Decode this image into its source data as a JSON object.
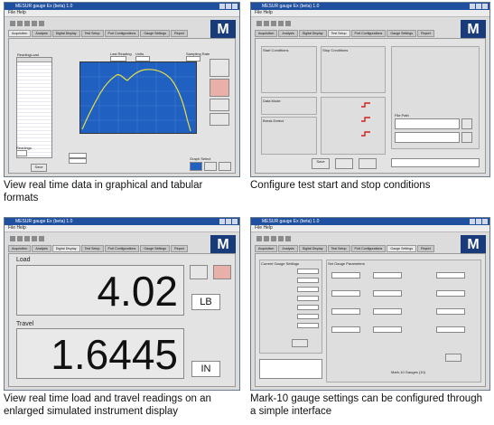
{
  "panel1": {
    "app_title": "MESUR gauge Ex (beta) 1.0",
    "menu": "File Help",
    "tabs": [
      "Acquisition",
      "Analysis",
      "Digital Display",
      "Test Setup",
      "Port Configurations",
      "Gauge Settings",
      "Report"
    ],
    "labels": {
      "reading": "Reading",
      "load": "Load",
      "travel": "Travel (in)",
      "last_reading": "Last Reading",
      "units": "Units",
      "sampling_rate": "Sampling Rate",
      "readings": "Readings",
      "save": "Save",
      "graph_select": "Graph Select"
    },
    "caption": "View real time data in graphical and tabular formats"
  },
  "panel2": {
    "app_title": "MESUR gauge Ex (beta) 1.0",
    "menu": "File Help",
    "tabs": [
      "Acquisition",
      "Analysis",
      "Digital Display",
      "Test Setup",
      "Port Configurations",
      "Gauge Settings",
      "Report"
    ],
    "labels": {
      "start_conditions": "Start Conditions",
      "stop_conditions": "Stop Conditions",
      "data_mode": "Data Mode",
      "break_detect": "Break Detect",
      "file_path": "File Path",
      "save": "Save",
      "caption_area": "Test Setup"
    },
    "caption": "Configure test start and stop conditions"
  },
  "panel3": {
    "app_title": "MESUR gauge Ex (beta) 1.0",
    "menu": "File Help",
    "tabs": [
      "Acquisition",
      "Analysis",
      "Digital Display",
      "Test Setup",
      "Port Configurations",
      "Gauge Settings",
      "Report"
    ],
    "load_label": "Load",
    "load_value": "4.02",
    "load_unit": "LB",
    "travel_label": "Travel",
    "travel_value": "1.6445",
    "travel_unit": "IN",
    "caption": "View real time load and travel readings on an enlarged simulated instrument display"
  },
  "panel4": {
    "app_title": "MESUR gauge Ex (beta) 1.0",
    "menu": "File Help",
    "tabs": [
      "Acquisition",
      "Analysis",
      "Digital Display",
      "Test Setup",
      "Port Configurations",
      "Gauge Settings",
      "Report"
    ],
    "labels": {
      "current_settings": "Current Gauge Settings",
      "set_gauge": "Set Gauge Parameters",
      "footer": "Mark-10 Gauges (10)"
    },
    "caption": "Mark-10 gauge settings can be configured through a simple interface"
  },
  "colors": {
    "titlebar": "#1f4f9f",
    "curve": "#e8e040",
    "plot_bg": "#2060c0",
    "logo": "#1a3b7a"
  }
}
